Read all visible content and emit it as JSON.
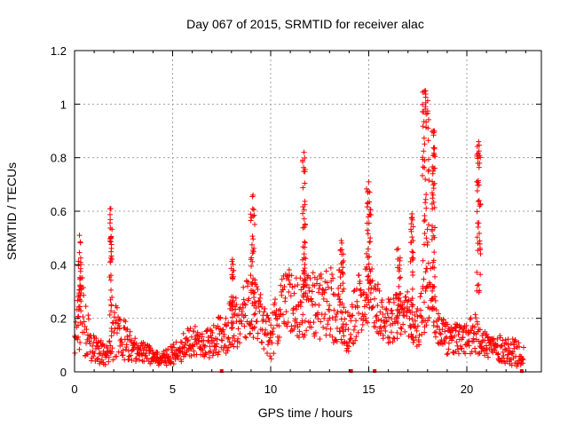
{
  "chart_data": {
    "type": "scatter",
    "title": "Day 067 of 2015, SRMTID for receiver alac",
    "xlabel": "GPS time / hours",
    "ylabel": "SRMTID / TECUs",
    "xlim": [
      0,
      23.8
    ],
    "ylim": [
      0,
      1.2
    ],
    "xticks": [
      0,
      5,
      10,
      15,
      20
    ],
    "xtick_labels": [
      "0",
      "5",
      "10",
      "15",
      "20"
    ],
    "yticks": [
      0,
      0.2,
      0.4,
      0.6,
      0.8,
      1.0,
      1.2
    ],
    "ytick_labels": [
      "0",
      "0.2",
      "0.4",
      "0.6",
      "0.8",
      "1",
      "1.2"
    ],
    "grid": true,
    "marker": "+",
    "color": "#ff0000",
    "profile": [
      [
        0.0,
        0.15,
        0.12
      ],
      [
        0.3,
        0.22,
        0.18
      ],
      [
        0.6,
        0.16,
        0.12
      ],
      [
        0.9,
        0.09,
        0.05
      ],
      [
        1.3,
        0.07,
        0.05
      ],
      [
        1.7,
        0.06,
        0.04
      ],
      [
        2.1,
        0.15,
        0.1
      ],
      [
        2.5,
        0.12,
        0.08
      ],
      [
        3.0,
        0.09,
        0.05
      ],
      [
        3.5,
        0.07,
        0.04
      ],
      [
        4.0,
        0.06,
        0.03
      ],
      [
        4.5,
        0.05,
        0.03
      ],
      [
        5.0,
        0.06,
        0.04
      ],
      [
        5.5,
        0.09,
        0.05
      ],
      [
        6.0,
        0.12,
        0.06
      ],
      [
        6.5,
        0.1,
        0.05
      ],
      [
        7.0,
        0.11,
        0.06
      ],
      [
        7.5,
        0.14,
        0.08
      ],
      [
        8.0,
        0.18,
        0.1
      ],
      [
        8.5,
        0.2,
        0.1
      ],
      [
        9.0,
        0.25,
        0.13
      ],
      [
        9.5,
        0.2,
        0.1
      ],
      [
        10.0,
        0.12,
        0.08
      ],
      [
        10.5,
        0.24,
        0.12
      ],
      [
        11.0,
        0.27,
        0.12
      ],
      [
        11.5,
        0.24,
        0.12
      ],
      [
        12.0,
        0.26,
        0.12
      ],
      [
        12.5,
        0.24,
        0.12
      ],
      [
        13.0,
        0.27,
        0.14
      ],
      [
        13.5,
        0.2,
        0.12
      ],
      [
        14.0,
        0.15,
        0.08
      ],
      [
        14.5,
        0.26,
        0.12
      ],
      [
        15.0,
        0.3,
        0.12
      ],
      [
        15.5,
        0.24,
        0.1
      ],
      [
        16.0,
        0.18,
        0.1
      ],
      [
        16.5,
        0.22,
        0.1
      ],
      [
        17.0,
        0.2,
        0.1
      ],
      [
        17.5,
        0.16,
        0.08
      ],
      [
        18.0,
        0.3,
        0.15
      ],
      [
        18.5,
        0.18,
        0.08
      ],
      [
        19.0,
        0.12,
        0.06
      ],
      [
        19.5,
        0.12,
        0.06
      ],
      [
        20.0,
        0.12,
        0.06
      ],
      [
        20.5,
        0.15,
        0.08
      ],
      [
        21.0,
        0.1,
        0.05
      ],
      [
        21.5,
        0.09,
        0.05
      ],
      [
        22.0,
        0.08,
        0.05
      ],
      [
        22.5,
        0.07,
        0.05
      ],
      [
        22.8,
        0.06,
        0.04
      ]
    ],
    "spikes": [
      {
        "x": 0.25,
        "peak": 0.51,
        "width": 0.15
      },
      {
        "x": 1.85,
        "peak": 0.61,
        "width": 0.12
      },
      {
        "x": 8.05,
        "peak": 0.42,
        "width": 0.15
      },
      {
        "x": 9.1,
        "peak": 0.66,
        "width": 0.25
      },
      {
        "x": 11.7,
        "peak": 0.82,
        "width": 0.15
      },
      {
        "x": 13.6,
        "peak": 0.49,
        "width": 0.25
      },
      {
        "x": 15.0,
        "peak": 0.71,
        "width": 0.25
      },
      {
        "x": 16.5,
        "peak": 0.46,
        "width": 0.25
      },
      {
        "x": 17.2,
        "peak": 0.59,
        "width": 0.15
      },
      {
        "x": 17.9,
        "peak": 1.05,
        "width": 0.35
      },
      {
        "x": 18.3,
        "peak": 0.9,
        "width": 0.15
      },
      {
        "x": 20.6,
        "peak": 0.86,
        "width": 0.2
      }
    ],
    "zero_markers": [
      7.5,
      14.1,
      15.3,
      22.8
    ]
  }
}
